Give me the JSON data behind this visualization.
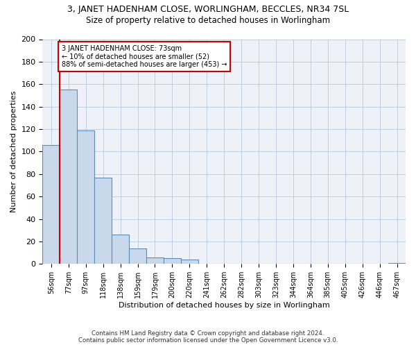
{
  "title_line1": "3, JANET HADENHAM CLOSE, WORLINGHAM, BECCLES, NR34 7SL",
  "title_line2": "Size of property relative to detached houses in Worlingham",
  "xlabel": "Distribution of detached houses by size in Worlingham",
  "ylabel": "Number of detached properties",
  "bar_categories": [
    "56sqm",
    "77sqm",
    "97sqm",
    "118sqm",
    "138sqm",
    "159sqm",
    "179sqm",
    "200sqm",
    "220sqm",
    "241sqm",
    "262sqm",
    "282sqm",
    "303sqm",
    "323sqm",
    "344sqm",
    "364sqm",
    "385sqm",
    "405sqm",
    "426sqm",
    "446sqm",
    "467sqm"
  ],
  "bar_values": [
    106,
    155,
    119,
    77,
    26,
    14,
    6,
    5,
    4,
    0,
    0,
    0,
    0,
    0,
    0,
    0,
    0,
    0,
    0,
    0,
    1
  ],
  "bar_color": "#c9d9eb",
  "bar_edge_color": "#5b8db8",
  "vline_color": "#cc0000",
  "annotation_text": "3 JANET HADENHAM CLOSE: 73sqm\n← 10% of detached houses are smaller (52)\n88% of semi-detached houses are larger (453) →",
  "annotation_box_color": "#ffffff",
  "annotation_box_edge_color": "#cc0000",
  "ylim": [
    0,
    200
  ],
  "yticks": [
    0,
    20,
    40,
    60,
    80,
    100,
    120,
    140,
    160,
    180,
    200
  ],
  "footer_line1": "Contains HM Land Registry data © Crown copyright and database right 2024.",
  "footer_line2": "Contains public sector information licensed under the Open Government Licence v3.0.",
  "bg_color": "#eef2f8",
  "title1_fontsize": 9,
  "title2_fontsize": 8.5
}
